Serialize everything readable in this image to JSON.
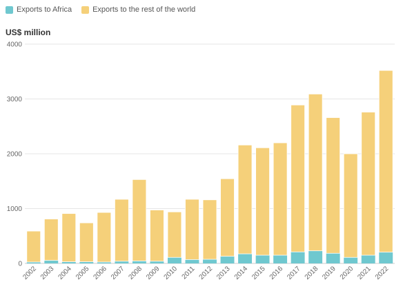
{
  "legend": {
    "items": [
      {
        "label": "Exports to Africa",
        "color": "#6fc8cf"
      },
      {
        "label": "Exports to the rest of the world",
        "color": "#f5d07a"
      }
    ]
  },
  "chart_data": {
    "type": "bar",
    "stacked": true,
    "ylabel": "US$ million",
    "ylim": [
      0,
      4000
    ],
    "yticks": [
      0,
      1000,
      2000,
      3000,
      4000
    ],
    "grid": true,
    "legend_position": "top-left",
    "categories": [
      "2002",
      "2003",
      "2004",
      "2005",
      "2006",
      "2007",
      "2008",
      "2009",
      "2010",
      "2011",
      "2012",
      "2013",
      "2014",
      "2015",
      "2016",
      "2017",
      "2018",
      "2019",
      "2020",
      "2021",
      "2022"
    ],
    "series": [
      {
        "name": "Exports to Africa",
        "color": "#6fc8cf",
        "values": [
          25,
          55,
          30,
          30,
          25,
          40,
          45,
          40,
          110,
          70,
          75,
          130,
          175,
          150,
          150,
          210,
          230,
          185,
          110,
          150,
          205
        ]
      },
      {
        "name": "Exports to the rest of the world",
        "color": "#f5d07a",
        "values": [
          565,
          755,
          880,
          710,
          905,
          1130,
          1485,
          935,
          830,
          1100,
          1085,
          1415,
          1985,
          1960,
          2050,
          2680,
          2860,
          2475,
          1890,
          2610,
          3315
        ]
      }
    ]
  }
}
